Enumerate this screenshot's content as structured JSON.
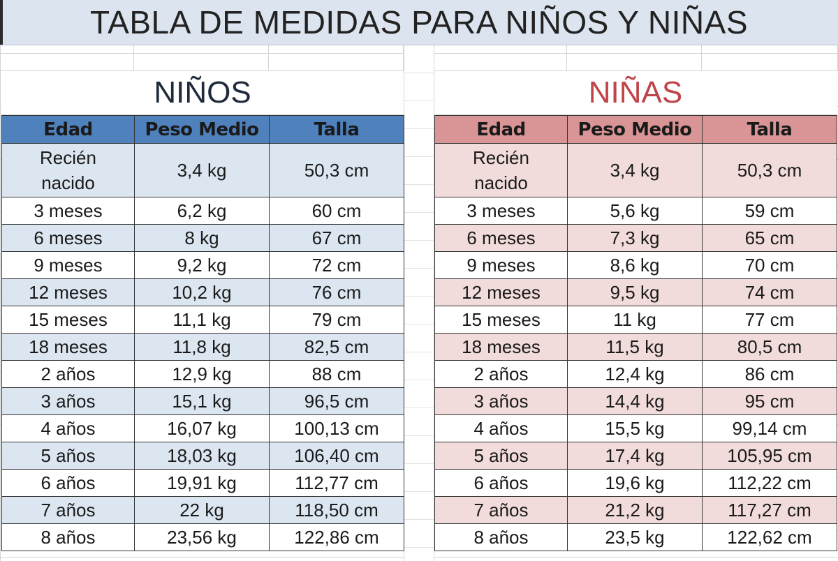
{
  "title": "TABLA DE MEDIDAS PARA NIÑOS Y NIÑAS",
  "colors": {
    "boys_header": "#4f81bd",
    "boys_shade": "#dce6f1",
    "girls_header": "#d99595",
    "girls_shade": "#f2dcdb",
    "girls_title": "#c0454a"
  },
  "boys": {
    "heading": "NIÑOS",
    "columns": [
      "Edad",
      "Peso Medio",
      "Talla"
    ],
    "rows": [
      {
        "age_line1": "Recién",
        "age_line2": "nacido",
        "weight": "3,4 kg",
        "height": "50,3 cm"
      },
      {
        "age": "3 meses",
        "weight": "6,2 kg",
        "height": "60 cm"
      },
      {
        "age": "6 meses",
        "weight": "8 kg",
        "height": "67 cm"
      },
      {
        "age": "9 meses",
        "weight": "9,2 kg",
        "height": "72 cm"
      },
      {
        "age": "12 meses",
        "weight": "10,2 kg",
        "height": "76 cm"
      },
      {
        "age": "15 meses",
        "weight": "11,1 kg",
        "height": "79 cm"
      },
      {
        "age": "18 meses",
        "weight": "11,8 kg",
        "height": "82,5 cm"
      },
      {
        "age": "2 años",
        "weight": "12,9 kg",
        "height": "88 cm"
      },
      {
        "age": "3 años",
        "weight": "15,1 kg",
        "height": "96,5 cm"
      },
      {
        "age": "4 años",
        "weight": "16,07 kg",
        "height": "100,13 cm"
      },
      {
        "age": "5 años",
        "weight": "18,03 kg",
        "height": "106,40 cm"
      },
      {
        "age": "6 años",
        "weight": "19,91 kg",
        "height": "112,77 cm"
      },
      {
        "age": "7 años",
        "weight": "22 kg",
        "height": "118,50 cm"
      },
      {
        "age": "8 años",
        "weight": "23,56 kg",
        "height": "122,86 cm"
      }
    ]
  },
  "girls": {
    "heading": "NIÑAS",
    "columns": [
      "Edad",
      "Peso Medio",
      "Talla"
    ],
    "rows": [
      {
        "age_line1": "Recién",
        "age_line2": "nacido",
        "weight": "3,4 kg",
        "height": "50,3 cm"
      },
      {
        "age": "3 meses",
        "weight": "5,6 kg",
        "height": "59 cm"
      },
      {
        "age": "6 meses",
        "weight": "7,3 kg",
        "height": "65 cm"
      },
      {
        "age": "9 meses",
        "weight": "8,6 kg",
        "height": "70 cm"
      },
      {
        "age": "12 meses",
        "weight": "9,5 kg",
        "height": "74 cm"
      },
      {
        "age": "15 meses",
        "weight": "11 kg",
        "height": "77 cm"
      },
      {
        "age": "18 meses",
        "weight": "11,5 kg",
        "height": "80,5 cm"
      },
      {
        "age": "2 años",
        "weight": "12,4 kg",
        "height": "86 cm"
      },
      {
        "age": "3 años",
        "weight": "14,4 kg",
        "height": "95 cm"
      },
      {
        "age": "4 años",
        "weight": "15,5 kg",
        "height": "99,14 cm"
      },
      {
        "age": "5 años",
        "weight": "17,4 kg",
        "height": "105,95 cm"
      },
      {
        "age": "6 años",
        "weight": "19,6 kg",
        "height": "112,22 cm"
      },
      {
        "age": "7 años",
        "weight": "21,2 kg",
        "height": "117,27 cm"
      },
      {
        "age": "8 años",
        "weight": "23,5 kg",
        "height": "122,62 cm"
      }
    ]
  }
}
